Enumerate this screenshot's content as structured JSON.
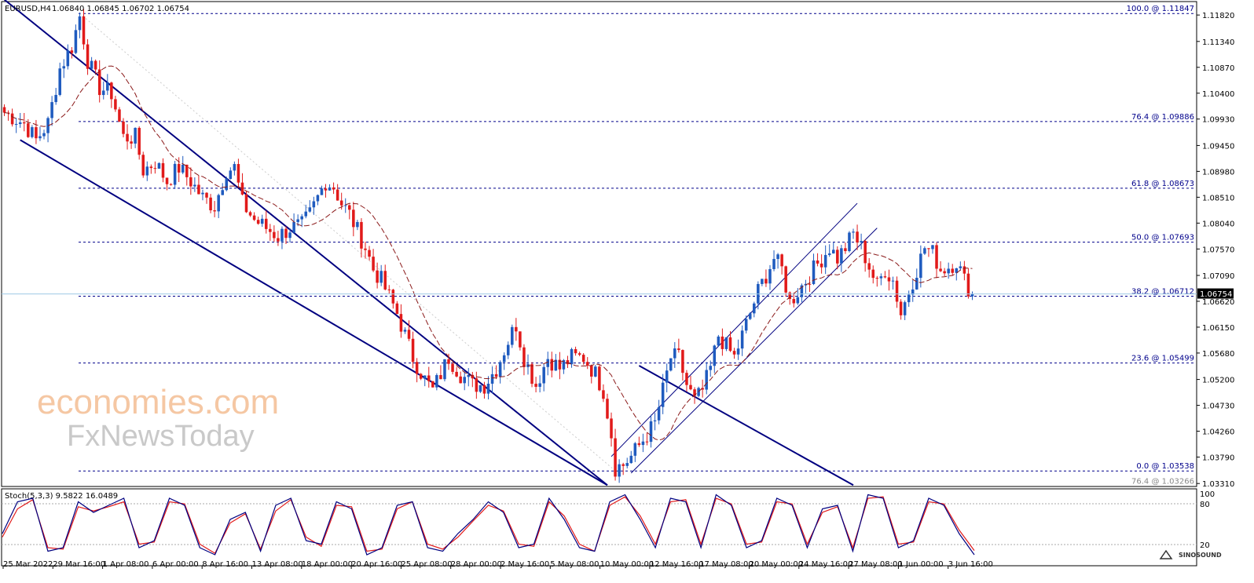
{
  "header": {
    "symbol": "EURUSD,H4",
    "ohlc": "1.06840 1.06845 1.06702 1.06754"
  },
  "stoch": {
    "label": "Stoch(5,3,3) 9.5822 16.0489",
    "levels": [
      "100",
      "80",
      "20"
    ]
  },
  "watermark": {
    "line1": "economies.com",
    "line2": "FxNewsToday",
    "corner": "SINOSOUND"
  },
  "colors": {
    "bull": "#1f5bbf",
    "bear": "#e11a1a",
    "channel": "#000080",
    "fib": "#00008b",
    "ma": "#8b1a1a",
    "stoch_main": "#000080",
    "stoch_signal": "#e11a1a",
    "current_price_box": "#000000"
  },
  "chart_data": {
    "type": "candlestick",
    "x_labels": [
      "25 Mar 2022",
      "29 Mar 16:00",
      "1 Apr 08:00",
      "6 Apr 00:00",
      "8 Apr 16:00",
      "13 Apr 08:00",
      "18 Apr 00:00",
      "20 Apr 16:00",
      "25 Apr 08:00",
      "28 Apr 00:00",
      "2 May 16:00",
      "5 May 08:00",
      "10 May 00:00",
      "12 May 16:00",
      "17 May 08:00",
      "20 May 00:00",
      "24 May 16:00",
      "27 May 08:00",
      "1 Jun 00:00",
      "3 Jun 16:00"
    ],
    "y_ticks": [
      "1.11820",
      "1.11340",
      "1.10870",
      "1.10400",
      "1.09930",
      "1.09450",
      "1.08980",
      "1.08510",
      "1.08040",
      "1.07570",
      "1.07090",
      "1.06620",
      "1.06150",
      "1.05680",
      "1.05200",
      "1.04730",
      "1.04260",
      "1.03790",
      "1.03310"
    ],
    "ylim": [
      1.0327,
      1.1205
    ],
    "current_price": "1.06754",
    "fib_levels": [
      {
        "label": "100.0 @ 1.11847",
        "value": 1.11847
      },
      {
        "label": "76.4 @ 1.09886",
        "value": 1.09886
      },
      {
        "label": "61.8 @ 1.08673",
        "value": 1.08673
      },
      {
        "label": "50.0 @ 1.07693",
        "value": 1.07693
      },
      {
        "label": "38.2 @ 1.06712",
        "value": 1.06712
      },
      {
        "label": "23.6 @ 1.05499",
        "value": 1.05499
      },
      {
        "label": "0.0 @ 1.03538",
        "value": 1.03538
      },
      {
        "label": "76.4 @ 1.03266",
        "value": 1.03266
      }
    ],
    "price_path": [
      [
        0,
        1.1005
      ],
      [
        5,
        1.0985
      ],
      [
        8,
        1.0955
      ],
      [
        11,
        1.0985
      ],
      [
        14,
        1.1085
      ],
      [
        17,
        1.1125
      ],
      [
        19,
        1.118
      ],
      [
        21,
        1.11
      ],
      [
        24,
        1.105
      ],
      [
        27,
        1.104
      ],
      [
        30,
        1.096
      ],
      [
        33,
        1.096
      ],
      [
        35,
        1.09
      ],
      [
        38,
        1.0915
      ],
      [
        41,
        1.088
      ],
      [
        44,
        1.0905
      ],
      [
        47,
        1.088
      ],
      [
        50,
        1.085
      ],
      [
        53,
        1.0835
      ],
      [
        56,
        1.09
      ],
      [
        58,
        1.0905
      ],
      [
        60,
        1.084
      ],
      [
        63,
        1.081
      ],
      [
        66,
        1.0795
      ],
      [
        69,
        1.078
      ],
      [
        72,
        1.0795
      ],
      [
        75,
        1.08
      ],
      [
        77,
        1.082
      ],
      [
        79,
        1.085
      ],
      [
        81,
        1.088
      ],
      [
        83,
        1.087
      ],
      [
        85,
        1.084
      ],
      [
        87,
        1.082
      ],
      [
        89,
        1.079
      ],
      [
        91,
        1.076
      ],
      [
        93,
        1.072
      ],
      [
        95,
        1.07
      ],
      [
        97,
        1.067
      ],
      [
        99,
        1.064
      ],
      [
        101,
        1.06
      ],
      [
        103,
        1.056
      ],
      [
        106,
        1.052
      ],
      [
        108,
        1.05
      ],
      [
        110,
        1.053
      ],
      [
        112,
        1.056
      ],
      [
        115,
        1.053
      ],
      [
        118,
        1.051
      ],
      [
        121,
        1.051
      ],
      [
        124,
        1.054
      ],
      [
        127,
        1.059
      ],
      [
        129,
        1.062
      ],
      [
        131,
        1.056
      ],
      [
        134,
        1.051
      ],
      [
        137,
        1.056
      ],
      [
        140,
        1.054
      ],
      [
        143,
        1.056
      ],
      [
        146,
        1.056
      ],
      [
        149,
        1.053
      ],
      [
        151,
        1.05
      ],
      [
        153,
        1.042
      ],
      [
        154,
        1.036
      ],
      [
        156,
        1.0365
      ],
      [
        158,
        1.038
      ],
      [
        160,
        1.04
      ],
      [
        162,
        1.042
      ],
      [
        164,
        1.044
      ],
      [
        166,
        1.05
      ],
      [
        168,
        1.056
      ],
      [
        170,
        1.056
      ],
      [
        172,
        1.051
      ],
      [
        174,
        1.048
      ],
      [
        176,
        1.05
      ],
      [
        178,
        1.054
      ],
      [
        180,
        1.06
      ],
      [
        182,
        1.058
      ],
      [
        184,
        1.056
      ],
      [
        186,
        1.06
      ],
      [
        188,
        1.064
      ],
      [
        190,
        1.068
      ],
      [
        192,
        1.071
      ],
      [
        194,
        1.074
      ],
      [
        196,
        1.072
      ],
      [
        198,
        1.066
      ],
      [
        200,
        1.068
      ],
      [
        202,
        1.07
      ],
      [
        204,
        1.072
      ],
      [
        206,
        1.074
      ],
      [
        208,
        1.076
      ],
      [
        210,
        1.074
      ],
      [
        212,
        1.076
      ],
      [
        214,
        1.0785
      ],
      [
        216,
        1.076
      ],
      [
        218,
        1.0725
      ],
      [
        220,
        1.069
      ],
      [
        222,
        1.072
      ],
      [
        224,
        1.07
      ],
      [
        226,
        1.064
      ],
      [
        228,
        1.068
      ],
      [
        230,
        1.072
      ],
      [
        232,
        1.076
      ],
      [
        234,
        1.075
      ],
      [
        236,
        1.072
      ],
      [
        238,
        1.0725
      ],
      [
        240,
        1.0735
      ],
      [
        242,
        1.07
      ],
      [
        244,
        1.0675
      ]
    ],
    "channels": [
      {
        "x1": 0,
        "y1": 1.121,
        "x2": 152,
        "y2": 1.0328,
        "style": "bold"
      },
      {
        "x1": 4,
        "y1": 1.0955,
        "x2": 152,
        "y2": 1.0328,
        "style": "bold"
      },
      {
        "x1": 153,
        "y1": 1.038,
        "x2": 215,
        "y2": 1.084,
        "style": "thin"
      },
      {
        "x1": 158,
        "y1": 1.035,
        "x2": 220,
        "y2": 1.0795,
        "style": "thin"
      }
    ],
    "stochastic": {
      "main": [
        40,
        85,
        90,
        15,
        20,
        85,
        70,
        80,
        90,
        20,
        30,
        90,
        80,
        20,
        10,
        60,
        70,
        15,
        80,
        90,
        30,
        25,
        85,
        75,
        10,
        20,
        80,
        85,
        20,
        15,
        40,
        60,
        85,
        70,
        20,
        25,
        90,
        60,
        20,
        15,
        85,
        95,
        60,
        20,
        90,
        85,
        20,
        95,
        80,
        20,
        30,
        90,
        80,
        20,
        75,
        80,
        15,
        95,
        90,
        20,
        30,
        90,
        80,
        40,
        10
      ],
      "signal": [
        35,
        75,
        88,
        20,
        18,
        78,
        72,
        78,
        85,
        25,
        28,
        85,
        82,
        25,
        12,
        55,
        68,
        18,
        72,
        88,
        35,
        22,
        80,
        78,
        15,
        18,
        75,
        85,
        25,
        18,
        35,
        58,
        80,
        72,
        25,
        22,
        85,
        65,
        25,
        15,
        80,
        92,
        65,
        25,
        85,
        88,
        25,
        90,
        82,
        25,
        28,
        85,
        82,
        25,
        70,
        78,
        20,
        90,
        92,
        25,
        28,
        85,
        82,
        45,
        16
      ]
    }
  }
}
